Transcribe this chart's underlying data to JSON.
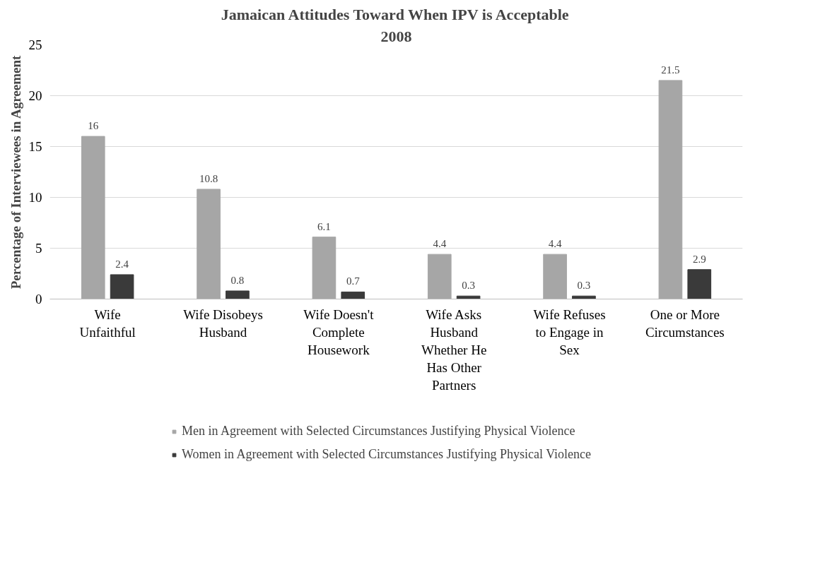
{
  "chart_data": {
    "type": "bar",
    "title": "Jamaican Attitudes Toward When IPV is Acceptable",
    "subtitle": "2008",
    "ylabel": "Percentage of Interviewees in Agreement",
    "categories": [
      "Wife Unfaithful",
      "Wife Disobeys Husband",
      "Wife Doesn't Complete Housework",
      "Wife Asks Husband Whether He Has Other Partners",
      "Wife Refuses to Engage in Sex",
      "One or More Circumstances"
    ],
    "series": [
      {
        "name": "Men in Agreement with Selected Circumstances Justifying Physical Violence",
        "color": "#a6a6a6",
        "values": [
          16,
          10.8,
          6.1,
          4.4,
          4.4,
          21.5
        ]
      },
      {
        "name": "Women in Agreement with Selected Circumstances Justifying Physical Violence",
        "color": "#3a3a3a",
        "values": [
          2.4,
          0.8,
          0.7,
          0.3,
          0.3,
          2.9
        ]
      }
    ],
    "ylim": [
      0,
      25
    ],
    "yticks": [
      0,
      5,
      10,
      15,
      20,
      25
    ],
    "grid": "y",
    "legend": "bottom",
    "data_labels": true
  }
}
